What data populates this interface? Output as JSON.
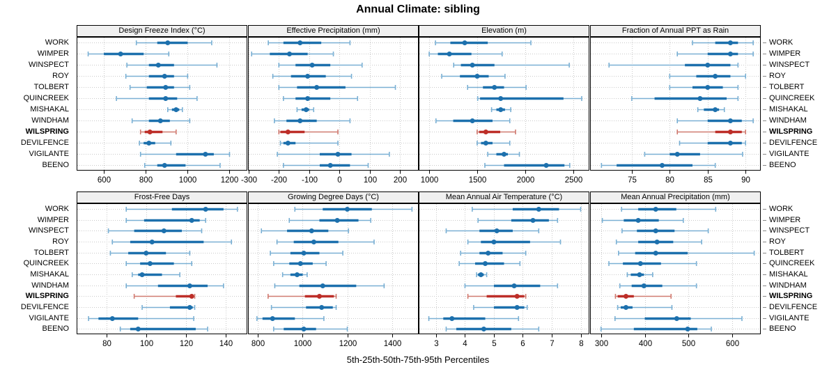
{
  "chart_data": {
    "type": "scatter",
    "subtype": "multi-panel percentile interval dot plot (5th-25th-50th-75th-95th)",
    "title": "Annual Climate: sibling",
    "caption": "5th-25th-50th-75th-95th Percentiles",
    "percentiles": [
      5,
      25,
      50,
      75,
      95
    ],
    "sites": [
      "WORK",
      "WIMPER",
      "WINSPECT",
      "ROY",
      "TOLBERT",
      "QUINCREEK",
      "MISHAKAL",
      "WINDHAM",
      "WILSPRING",
      "DEVILFENCE",
      "VIGILANTE",
      "BEENO"
    ],
    "highlight_site": "WILSPRING",
    "colors": {
      "series_main": "#1c70ad",
      "series_light": "#7ab0d4",
      "highlight_main": "#bd2e28",
      "highlight_light": "#d07a70",
      "gridline": "#c9c9c9",
      "header_bg": "#f0f0f0",
      "border": "#000000"
    },
    "panel_rows": [
      [
        {
          "title": "Design Freeze Index (°C)",
          "xlim": [
            470,
            1285
          ],
          "ticks": [
            600,
            800,
            1000,
            1200
          ],
          "values": [
            [
              755,
              855,
              905,
              1000,
              1115
            ],
            [
              525,
              600,
              680,
              790,
              910
            ],
            [
              710,
              815,
              860,
              935,
              1140
            ],
            [
              705,
              815,
              890,
              935,
              1000
            ],
            [
              725,
              805,
              895,
              935,
              1010
            ],
            [
              660,
              815,
              895,
              950,
              1045
            ],
            [
              905,
              925,
              945,
              960,
              975
            ],
            [
              735,
              815,
              870,
              915,
              1010
            ],
            [
              775,
              795,
              820,
              880,
              945
            ],
            [
              770,
              790,
              815,
              845,
              920
            ],
            [
              775,
              945,
              1085,
              1125,
              1200
            ],
            [
              795,
              855,
              890,
              990,
              1155
            ]
          ]
        },
        {
          "title": "Effective Precipitation (mm)",
          "xlim": [
            -302,
            262
          ],
          "ticks": [
            -300,
            -200,
            -100,
            0,
            100,
            200
          ],
          "values": [
            [
              -235,
              -185,
              -130,
              -60,
              35
            ],
            [
              -290,
              -230,
              -165,
              -105,
              -20
            ],
            [
              -200,
              -145,
              -90,
              -30,
              75
            ],
            [
              -220,
              -160,
              -105,
              -45,
              40
            ],
            [
              -200,
              -140,
              -75,
              20,
              185
            ],
            [
              -185,
              -145,
              -105,
              -30,
              60
            ],
            [
              -140,
              -125,
              -110,
              -100,
              -85
            ],
            [
              -215,
              -175,
              -130,
              -75,
              35
            ],
            [
              -200,
              -195,
              -170,
              -115,
              -5
            ],
            [
              -195,
              -185,
              -170,
              -145,
              -5
            ],
            [
              -205,
              -65,
              -5,
              40,
              165
            ],
            [
              -185,
              -65,
              -30,
              35,
              95
            ]
          ]
        },
        {
          "title": "Elevation (m)",
          "xlim": [
            890,
            2670
          ],
          "ticks": [
            1000,
            1500,
            2000,
            2500
          ],
          "values": [
            [
              1065,
              1220,
              1370,
              1610,
              2060
            ],
            [
              1000,
              1090,
              1210,
              1440,
              1760
            ],
            [
              1255,
              1330,
              1450,
              1680,
              2460
            ],
            [
              1130,
              1320,
              1500,
              1620,
              1790
            ],
            [
              1400,
              1560,
              1680,
              1780,
              2010
            ],
            [
              1505,
              1530,
              1745,
              2400,
              2590
            ],
            [
              1650,
              1700,
              1745,
              1790,
              1850
            ],
            [
              1070,
              1250,
              1450,
              1660,
              1840
            ],
            [
              1500,
              1520,
              1590,
              1740,
              1900
            ],
            [
              1500,
              1540,
              1590,
              1660,
              1840
            ],
            [
              1610,
              1700,
              1780,
              1820,
              1940
            ],
            [
              1580,
              1780,
              2220,
              2410,
              2465
            ]
          ]
        },
        {
          "title": "Fraction of Annual PPT as Rain",
          "xlim": [
            69.5,
            92
          ],
          "ticks": [
            75,
            80,
            85,
            90
          ],
          "values": [
            [
              83,
              86,
              88,
              89,
              91
            ],
            [
              81,
              85,
              88,
              89,
              91
            ],
            [
              72,
              82,
              85,
              88,
              89
            ],
            [
              80,
              83.5,
              86,
              88,
              90
            ],
            [
              80,
              83,
              85,
              87,
              89
            ],
            [
              75,
              78,
              84,
              87.5,
              89
            ],
            [
              83.7,
              84.5,
              86,
              86.5,
              87.2
            ],
            [
              81,
              85,
              88,
              89.5,
              91
            ],
            [
              81,
              86,
              88,
              89.5,
              90
            ],
            [
              81.3,
              85,
              88,
              89.5,
              90
            ],
            [
              76.7,
              80,
              81,
              84,
              89.6
            ],
            [
              71,
              73,
              79,
              83,
              86
            ]
          ]
        }
      ],
      [
        {
          "title": "Frost-Free Days",
          "xlim": [
            65,
            151
          ],
          "ticks": [
            80,
            100,
            120,
            140
          ],
          "values": [
            [
              90,
              113,
              130,
              139,
              146
            ],
            [
              90,
              99,
              123,
              127,
              130
            ],
            [
              81,
              94,
              109,
              118,
              128
            ],
            [
              83,
              92,
              103,
              129,
              143
            ],
            [
              82,
              91,
              100,
              110,
              122
            ],
            [
              90,
              97,
              102,
              114,
              123
            ],
            [
              93,
              96,
              98,
              108,
              117
            ],
            [
              90,
              106,
              122,
              131,
              139
            ],
            [
              94,
              115,
              123,
              124,
              124.5
            ],
            [
              98,
              112,
              122,
              123.5,
              124.5
            ],
            [
              71,
              76,
              83,
              96,
              124
            ],
            [
              87,
              92,
              96,
              125,
              131
            ]
          ]
        },
        {
          "title": "Growing Degree Days (°C)",
          "xlim": [
            755,
            1520
          ],
          "ticks": [
            800,
            1000,
            1200,
            1400
          ],
          "values": [
            [
              965,
              1090,
              1200,
              1310,
              1490
            ],
            [
              940,
              1075,
              1155,
              1250,
              1305
            ],
            [
              815,
              930,
              1040,
              1115,
              1205
            ],
            [
              885,
              960,
              1050,
              1160,
              1320
            ],
            [
              855,
              945,
              1005,
              1075,
              1180
            ],
            [
              870,
              940,
              990,
              1045,
              1105
            ],
            [
              910,
              945,
              975,
              1000,
              1020
            ],
            [
              875,
              985,
              1090,
              1240,
              1365
            ],
            [
              845,
              1010,
              1075,
              1140,
              1150
            ],
            [
              860,
              1015,
              1085,
              1135,
              1150
            ],
            [
              795,
              820,
              865,
              965,
              1095
            ],
            [
              870,
              915,
              1005,
              1060,
              1200
            ]
          ]
        },
        {
          "title": "Mean Annual Air Temperature (°C)",
          "xlim": [
            2.4,
            8.3
          ],
          "ticks": [
            3,
            4,
            5,
            6,
            7,
            8
          ],
          "values": [
            [
              4.25,
              5.65,
              6.55,
              7.25,
              8.0
            ],
            [
              4.45,
              5.6,
              6.35,
              6.9,
              7.2
            ],
            [
              3.35,
              4.5,
              5.1,
              5.65,
              6.55
            ],
            [
              4.1,
              4.55,
              5.0,
              6.25,
              7.3
            ],
            [
              3.85,
              4.5,
              4.8,
              5.3,
              6.1
            ],
            [
              3.8,
              4.35,
              4.7,
              5.35,
              5.9
            ],
            [
              4.4,
              4.45,
              4.55,
              4.65,
              4.75
            ],
            [
              4.0,
              5.0,
              5.7,
              6.6,
              7.2
            ],
            [
              4.1,
              4.75,
              5.8,
              6.05,
              6.1
            ],
            [
              4.3,
              5.0,
              5.8,
              6.05,
              6.15
            ],
            [
              2.75,
              3.25,
              3.55,
              4.7,
              5.85
            ],
            [
              3.35,
              3.7,
              4.65,
              5.6,
              6.55
            ]
          ]
        },
        {
          "title": "Mean Annual Precipitation (mm)",
          "xlim": [
            275,
            665
          ],
          "ticks": [
            300,
            400,
            500,
            600
          ],
          "values": [
            [
              347,
              385,
              425,
              472,
              562
            ],
            [
              303,
              352,
              385,
              432,
              488
            ],
            [
              348,
              382,
              425,
              468,
              545
            ],
            [
              335,
              385,
              428,
              465,
              530
            ],
            [
              340,
              378,
              425,
              498,
              650
            ],
            [
              318,
              350,
              390,
              437,
              518
            ],
            [
              360,
              368,
              388,
              398,
              418
            ],
            [
              343,
              370,
              398,
              440,
              518
            ],
            [
              333,
              338,
              357,
              375,
              460
            ],
            [
              338,
              345,
              357,
              372,
              462
            ],
            [
              332,
              400,
              473,
              505,
              622
            ],
            [
              300,
              375,
              498,
              520,
              552
            ]
          ]
        }
      ]
    ]
  }
}
